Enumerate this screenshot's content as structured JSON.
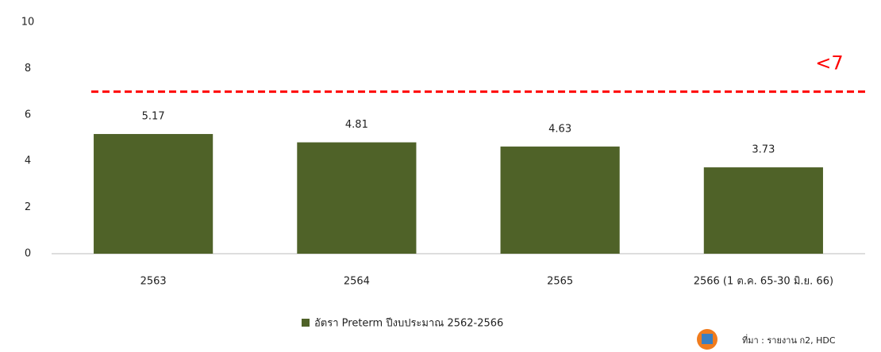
{
  "chart_data": {
    "type": "bar",
    "categories": [
      "2563",
      "2564",
      "2565",
      "2566 (1 ต.ค. 65-30 มิ.ย. 66)"
    ],
    "series": [
      {
        "name": "อัตรา Preterm ปีงบประมาณ 2562-2566",
        "color": "#4f6228",
        "values": [
          5.17,
          4.81,
          4.63,
          3.73
        ]
      }
    ],
    "ylim": [
      0,
      10
    ],
    "yticks": [
      0,
      2,
      4,
      6,
      8,
      10
    ],
    "grid": false,
    "threshold": 7,
    "threshold_label": "<7",
    "threshold_color": "#ff0000",
    "legend": "bottom",
    "source": "ที่มา : รายงาน ก2, HDC"
  }
}
